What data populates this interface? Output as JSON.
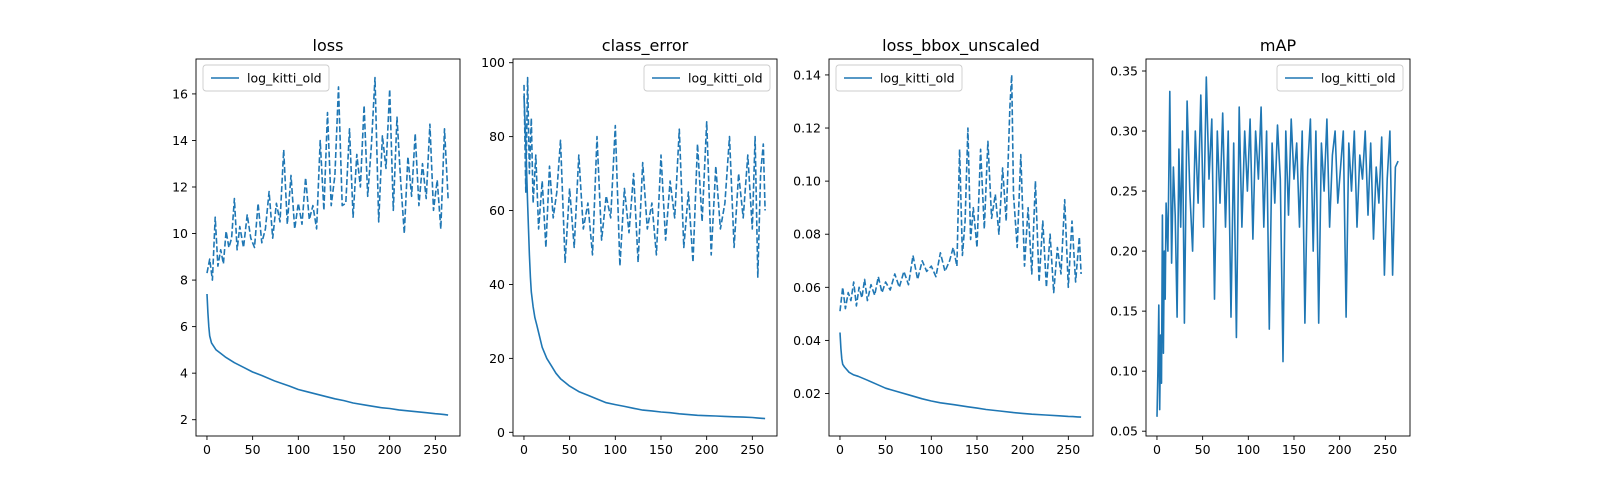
{
  "figure": {
    "background": "#ffffff",
    "line_color": "#1f77b4"
  },
  "chart_data": [
    {
      "type": "line",
      "title": "loss",
      "xlim": [
        -12,
        277
      ],
      "ylim": [
        1.3,
        17.5
      ],
      "xticks": [
        0,
        50,
        100,
        150,
        200,
        250
      ],
      "xtick_labels": [
        "0",
        "50",
        "100",
        "150",
        "200",
        "250"
      ],
      "yticks": [
        2,
        4,
        6,
        8,
        10,
        12,
        14,
        16
      ],
      "ytick_labels": [
        "2",
        "4",
        "6",
        "8",
        "10",
        "12",
        "14",
        "16"
      ],
      "grid": false,
      "legend": {
        "position": "upper-left",
        "entries": [
          "log_kitti_old"
        ]
      },
      "series": [
        {
          "name": "log_kitti_old",
          "style": "solid",
          "x": [
            0,
            1,
            2,
            3,
            5,
            10,
            15,
            20,
            30,
            40,
            50,
            60,
            75,
            90,
            100,
            110,
            125,
            140,
            150,
            160,
            175,
            190,
            200,
            210,
            225,
            240,
            250,
            255,
            260,
            264
          ],
          "y": [
            7.4,
            6.6,
            6.0,
            5.6,
            5.3,
            5.0,
            4.85,
            4.7,
            4.45,
            4.25,
            4.05,
            3.9,
            3.65,
            3.45,
            3.3,
            3.2,
            3.05,
            2.9,
            2.82,
            2.72,
            2.62,
            2.52,
            2.48,
            2.42,
            2.36,
            2.3,
            2.26,
            2.24,
            2.22,
            2.2
          ]
        },
        {
          "name": "",
          "style": "dashed",
          "x": [
            0,
            3,
            6,
            9,
            12,
            15,
            18,
            21,
            24,
            27,
            30,
            33,
            36,
            40,
            44,
            48,
            52,
            56,
            60,
            64,
            68,
            72,
            76,
            80,
            84,
            88,
            92,
            96,
            100,
            104,
            108,
            112,
            116,
            120,
            124,
            128,
            132,
            136,
            140,
            144,
            148,
            152,
            156,
            160,
            164,
            168,
            172,
            176,
            180,
            184,
            188,
            192,
            196,
            200,
            204,
            208,
            212,
            216,
            220,
            224,
            228,
            232,
            236,
            240,
            244,
            248,
            252,
            256,
            260,
            264
          ],
          "y": [
            8.3,
            8.9,
            8.0,
            10.7,
            8.6,
            9.3,
            8.7,
            10.1,
            9.4,
            9.8,
            11.5,
            9.3,
            10.3,
            9.4,
            10.8,
            9.8,
            9.4,
            11.3,
            9.6,
            10.2,
            11.8,
            9.8,
            11.3,
            10.5,
            13.6,
            10.4,
            12.5,
            10.2,
            11.3,
            10.4,
            12.4,
            10.6,
            11.2,
            10.2,
            14.0,
            11.0,
            15.2,
            11.2,
            12.5,
            16.3,
            11.2,
            11.3,
            14.5,
            10.7,
            13.4,
            12.0,
            15.5,
            11.6,
            13.8,
            16.7,
            10.5,
            14.2,
            12.8,
            16.2,
            11.0,
            15.0,
            12.3,
            10.0,
            13.3,
            11.6,
            14.3,
            11.2,
            13.0,
            11.5,
            14.7,
            11.0,
            12.3,
            10.2,
            14.5,
            11.5
          ]
        }
      ]
    },
    {
      "type": "line",
      "title": "class_error",
      "xlim": [
        -12,
        277
      ],
      "ylim": [
        -1,
        101
      ],
      "xticks": [
        0,
        50,
        100,
        150,
        200,
        250
      ],
      "xtick_labels": [
        "0",
        "50",
        "100",
        "150",
        "200",
        "250"
      ],
      "yticks": [
        0,
        20,
        40,
        60,
        80,
        100
      ],
      "ytick_labels": [
        "0",
        "20",
        "40",
        "60",
        "80",
        "100"
      ],
      "grid": false,
      "legend": {
        "position": "upper-right",
        "entries": [
          "log_kitti_old"
        ]
      },
      "series": [
        {
          "name": "log_kitti_old",
          "style": "solid",
          "x": [
            0,
            1,
            2,
            3,
            4,
            5,
            6,
            7,
            8,
            9,
            10,
            12,
            14,
            16,
            18,
            20,
            25,
            30,
            35,
            40,
            50,
            60,
            70,
            80,
            90,
            100,
            110,
            120,
            130,
            140,
            150,
            160,
            170,
            180,
            190,
            200,
            210,
            220,
            230,
            240,
            250,
            255,
            260,
            264
          ],
          "y": [
            91,
            85,
            78,
            70,
            62,
            55,
            48,
            42,
            38,
            36,
            34,
            31,
            29,
            27,
            25,
            23,
            20,
            18,
            16,
            14.5,
            12.5,
            11,
            10,
            9,
            8,
            7.5,
            7,
            6.5,
            6,
            5.8,
            5.5,
            5.3,
            5,
            4.8,
            4.6,
            4.5,
            4.4,
            4.3,
            4.2,
            4.1,
            4.0,
            3.9,
            3.8,
            3.7
          ]
        },
        {
          "name": "",
          "style": "dashed",
          "x": [
            0,
            2,
            4,
            6,
            8,
            10,
            13,
            16,
            20,
            24,
            28,
            32,
            36,
            40,
            45,
            50,
            55,
            60,
            65,
            70,
            75,
            80,
            85,
            90,
            95,
            100,
            105,
            110,
            115,
            120,
            125,
            130,
            135,
            140,
            145,
            150,
            155,
            160,
            165,
            170,
            175,
            180,
            185,
            190,
            195,
            200,
            205,
            210,
            215,
            220,
            225,
            230,
            235,
            240,
            245,
            250,
            253,
            256,
            259,
            262,
            264
          ],
          "y": [
            94,
            65,
            96,
            70,
            85,
            62,
            75,
            55,
            68,
            50,
            72,
            58,
            65,
            79,
            46,
            66,
            50,
            75,
            55,
            62,
            48,
            80,
            52,
            64,
            58,
            83,
            45,
            66,
            54,
            70,
            46,
            73,
            55,
            62,
            48,
            75,
            52,
            68,
            58,
            82,
            50,
            65,
            46,
            78,
            57,
            84,
            48,
            72,
            55,
            62,
            80,
            50,
            70,
            58,
            75,
            55,
            80,
            42,
            70,
            78,
            60
          ]
        }
      ]
    },
    {
      "type": "line",
      "title": "loss_bbox_unscaled",
      "xlim": [
        -12,
        277
      ],
      "ylim": [
        0.004,
        0.146
      ],
      "xticks": [
        0,
        50,
        100,
        150,
        200,
        250
      ],
      "xtick_labels": [
        "0",
        "50",
        "100",
        "150",
        "200",
        "250"
      ],
      "yticks": [
        0.02,
        0.04,
        0.06,
        0.08,
        0.1,
        0.12,
        0.14
      ],
      "ytick_labels": [
        "0.02",
        "0.04",
        "0.06",
        "0.08",
        "0.10",
        "0.12",
        "0.14"
      ],
      "grid": false,
      "legend": {
        "position": "upper-left",
        "entries": [
          "log_kitti_old"
        ]
      },
      "series": [
        {
          "name": "log_kitti_old",
          "style": "solid",
          "x": [
            0,
            1,
            2,
            3,
            5,
            10,
            15,
            20,
            30,
            40,
            50,
            60,
            75,
            90,
            100,
            110,
            125,
            140,
            150,
            160,
            175,
            190,
            200,
            210,
            225,
            240,
            250,
            255,
            260,
            264
          ],
          "y": [
            0.043,
            0.037,
            0.033,
            0.031,
            0.03,
            0.028,
            0.027,
            0.0265,
            0.025,
            0.0235,
            0.022,
            0.021,
            0.0195,
            0.018,
            0.0172,
            0.0165,
            0.0158,
            0.015,
            0.0145,
            0.014,
            0.0134,
            0.0128,
            0.0125,
            0.0122,
            0.0119,
            0.0116,
            0.0114,
            0.0113,
            0.0112,
            0.0111
          ]
        },
        {
          "name": "",
          "style": "dashed",
          "x": [
            0,
            3,
            6,
            9,
            12,
            15,
            18,
            21,
            24,
            27,
            30,
            34,
            38,
            42,
            46,
            50,
            55,
            60,
            65,
            70,
            75,
            80,
            85,
            90,
            95,
            100,
            105,
            110,
            115,
            120,
            124,
            128,
            131,
            134,
            137,
            140,
            143,
            146,
            150,
            154,
            158,
            162,
            166,
            170,
            174,
            178,
            182,
            186,
            188,
            190,
            194,
            198,
            202,
            206,
            210,
            214,
            218,
            222,
            226,
            230,
            234,
            238,
            242,
            246,
            250,
            254,
            258,
            262,
            264
          ],
          "y": [
            0.051,
            0.06,
            0.052,
            0.058,
            0.055,
            0.062,
            0.053,
            0.06,
            0.056,
            0.063,
            0.055,
            0.061,
            0.057,
            0.064,
            0.058,
            0.062,
            0.059,
            0.065,
            0.06,
            0.066,
            0.061,
            0.072,
            0.063,
            0.07,
            0.066,
            0.068,
            0.064,
            0.073,
            0.066,
            0.07,
            0.075,
            0.068,
            0.112,
            0.072,
            0.085,
            0.12,
            0.078,
            0.09,
            0.075,
            0.112,
            0.082,
            0.115,
            0.086,
            0.095,
            0.08,
            0.105,
            0.085,
            0.128,
            0.14,
            0.095,
            0.075,
            0.11,
            0.068,
            0.09,
            0.065,
            0.1,
            0.062,
            0.085,
            0.06,
            0.08,
            0.058,
            0.075,
            0.065,
            0.093,
            0.06,
            0.085,
            0.062,
            0.079,
            0.065
          ]
        }
      ]
    },
    {
      "type": "line",
      "title": "mAP",
      "xlim": [
        -12,
        277
      ],
      "ylim": [
        0.046,
        0.36
      ],
      "xticks": [
        0,
        50,
        100,
        150,
        200,
        250
      ],
      "xtick_labels": [
        "0",
        "50",
        "100",
        "150",
        "200",
        "250"
      ],
      "yticks": [
        0.05,
        0.1,
        0.15,
        0.2,
        0.25,
        0.3,
        0.35
      ],
      "ytick_labels": [
        "0.05",
        "0.10",
        "0.15",
        "0.20",
        "0.25",
        "0.30",
        "0.35"
      ],
      "grid": false,
      "legend": {
        "position": "upper-right",
        "entries": [
          "log_kitti_old"
        ]
      },
      "series": [
        {
          "name": "log_kitti_old",
          "style": "solid",
          "x": [
            0,
            1,
            2,
            3,
            4,
            5,
            6,
            7,
            8,
            9,
            10,
            12,
            14,
            16,
            18,
            20,
            22,
            24,
            26,
            28,
            30,
            33,
            36,
            39,
            42,
            45,
            48,
            51,
            54,
            57,
            60,
            63,
            66,
            69,
            72,
            75,
            78,
            81,
            84,
            87,
            90,
            93,
            96,
            99,
            102,
            105,
            108,
            111,
            114,
            117,
            120,
            123,
            126,
            129,
            132,
            135,
            138,
            141,
            144,
            147,
            150,
            153,
            156,
            159,
            162,
            165,
            168,
            171,
            174,
            177,
            180,
            183,
            186,
            189,
            192,
            195,
            198,
            201,
            204,
            207,
            210,
            213,
            216,
            219,
            222,
            225,
            228,
            231,
            234,
            237,
            240,
            243,
            246,
            249,
            252,
            255,
            258,
            261,
            264
          ],
          "y": [
            0.062,
            0.1,
            0.155,
            0.068,
            0.13,
            0.09,
            0.23,
            0.115,
            0.2,
            0.16,
            0.24,
            0.2,
            0.333,
            0.19,
            0.27,
            0.23,
            0.145,
            0.285,
            0.22,
            0.3,
            0.14,
            0.325,
            0.25,
            0.2,
            0.3,
            0.24,
            0.33,
            0.22,
            0.345,
            0.26,
            0.31,
            0.16,
            0.3,
            0.24,
            0.315,
            0.22,
            0.3,
            0.145,
            0.29,
            0.128,
            0.32,
            0.22,
            0.3,
            0.25,
            0.31,
            0.21,
            0.3,
            0.26,
            0.32,
            0.22,
            0.3,
            0.135,
            0.29,
            0.24,
            0.305,
            0.26,
            0.108,
            0.3,
            0.23,
            0.31,
            0.26,
            0.29,
            0.22,
            0.3,
            0.14,
            0.27,
            0.31,
            0.2,
            0.3,
            0.14,
            0.29,
            0.25,
            0.31,
            0.22,
            0.28,
            0.3,
            0.24,
            0.27,
            0.3,
            0.145,
            0.29,
            0.25,
            0.3,
            0.22,
            0.28,
            0.26,
            0.3,
            0.23,
            0.29,
            0.21,
            0.27,
            0.24,
            0.295,
            0.18,
            0.26,
            0.3,
            0.18,
            0.27,
            0.275
          ]
        }
      ]
    }
  ]
}
